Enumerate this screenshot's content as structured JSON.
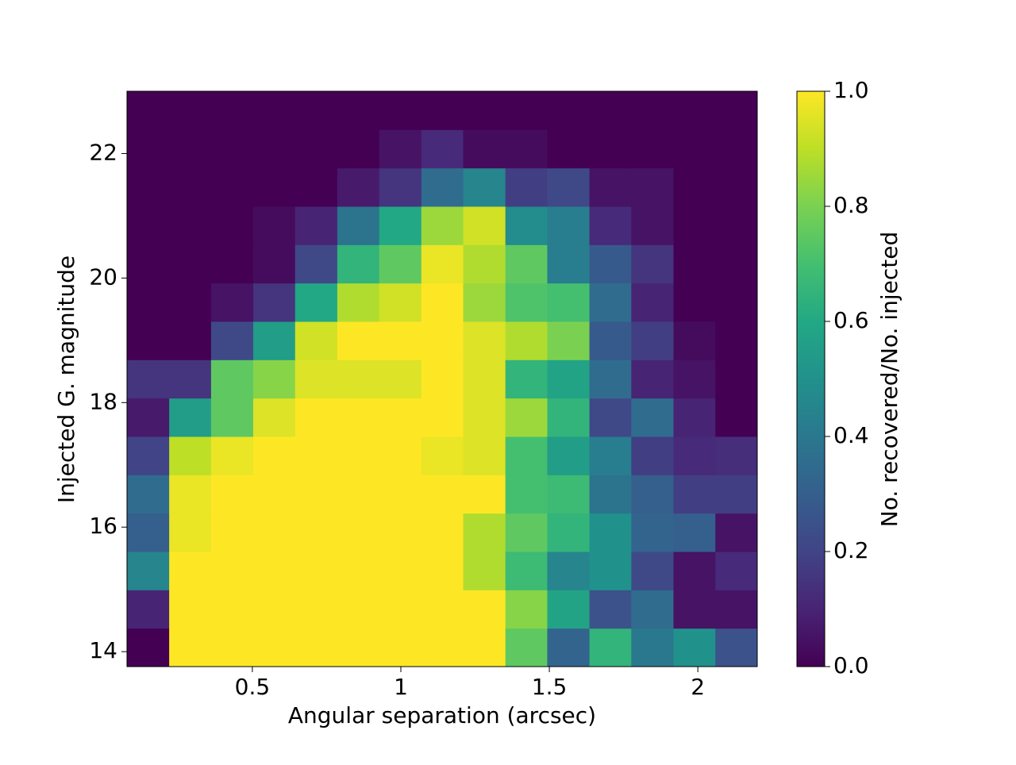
{
  "chart_data": {
    "type": "heatmap",
    "x_label": "Angular separation (arcsec)",
    "y_label": "Injected G. magnitude",
    "colorbar_label": "No. recovered/No. injected",
    "colormap": "viridis",
    "xbins": [
      0.078,
      0.22,
      0.361,
      0.503,
      0.644,
      0.786,
      0.927,
      1.069,
      1.21,
      1.352,
      1.493,
      1.635,
      1.776,
      1.918,
      2.059,
      2.2
    ],
    "ybins": [
      13.76,
      14.376,
      14.992,
      15.608,
      16.224,
      16.84,
      17.456,
      18.072,
      18.688,
      19.304,
      19.92,
      20.536,
      21.152,
      21.768,
      22.384,
      23.0
    ],
    "z": [
      [
        0,
        1,
        1,
        1,
        1,
        1,
        1,
        1,
        1,
        0.75,
        0.32,
        0.65,
        0.4,
        0.5,
        0.25
      ],
      [
        0.1,
        1,
        1,
        1,
        1,
        1,
        1,
        1,
        1,
        0.82,
        0.58,
        0.25,
        0.35,
        0.05,
        0.05
      ],
      [
        0.45,
        1,
        1,
        1,
        1,
        1,
        1,
        1,
        0.88,
        0.68,
        0.45,
        0.5,
        0.22,
        0.05,
        0.12
      ],
      [
        0.3,
        0.97,
        1,
        1,
        1,
        1,
        1,
        1,
        0.88,
        0.75,
        0.65,
        0.5,
        0.32,
        0.3,
        0.05
      ],
      [
        0.35,
        0.97,
        1,
        1,
        1,
        1,
        1,
        1,
        1,
        0.7,
        0.68,
        0.38,
        0.3,
        0.18,
        0.18
      ],
      [
        0.2,
        0.9,
        0.97,
        1,
        1,
        1,
        1,
        0.97,
        0.95,
        0.7,
        0.55,
        0.42,
        0.18,
        0.12,
        0.13
      ],
      [
        0.07,
        0.55,
        0.75,
        0.95,
        1,
        1,
        1,
        1,
        0.95,
        0.85,
        0.65,
        0.22,
        0.35,
        0.1,
        0
      ],
      [
        0.15,
        0.15,
        0.75,
        0.82,
        0.95,
        0.95,
        0.95,
        1,
        0.95,
        0.65,
        0.58,
        0.35,
        0.1,
        0.05,
        0
      ],
      [
        0,
        0,
        0.22,
        0.55,
        0.93,
        1,
        1,
        1,
        0.95,
        0.88,
        0.8,
        0.28,
        0.18,
        0.03,
        0
      ],
      [
        0,
        0,
        0.05,
        0.15,
        0.6,
        0.88,
        0.93,
        1,
        0.85,
        0.72,
        0.7,
        0.35,
        0.1,
        0,
        0
      ],
      [
        0,
        0,
        0,
        0.03,
        0.22,
        0.65,
        0.75,
        0.97,
        0.88,
        0.75,
        0.42,
        0.28,
        0.15,
        0,
        0
      ],
      [
        0,
        0,
        0,
        0.03,
        0.1,
        0.38,
        0.6,
        0.85,
        0.93,
        0.48,
        0.42,
        0.12,
        0.05,
        0,
        0
      ],
      [
        0,
        0,
        0,
        0,
        0,
        0.07,
        0.15,
        0.35,
        0.45,
        0.18,
        0.22,
        0.05,
        0.05,
        0,
        0
      ],
      [
        0,
        0,
        0,
        0,
        0,
        0,
        0.05,
        0.12,
        0.03,
        0.03,
        0,
        0,
        0,
        0,
        0
      ],
      [
        0,
        0,
        0,
        0,
        0,
        0,
        0,
        0,
        0,
        0,
        0,
        0,
        0,
        0,
        0
      ]
    ],
    "xlim": [
      0.078,
      2.2
    ],
    "ylim": [
      13.76,
      23.0
    ],
    "xticks": [
      0.5,
      1.0,
      1.5,
      2.0
    ],
    "yticks": [
      14,
      16,
      18,
      20,
      22
    ],
    "clim": [
      0,
      1
    ],
    "cticks": [
      {
        "value": 0,
        "label": "0.0"
      },
      0.2,
      0.4,
      0.6,
      0.8,
      {
        "value": 1,
        "label": "1.0"
      }
    ]
  }
}
